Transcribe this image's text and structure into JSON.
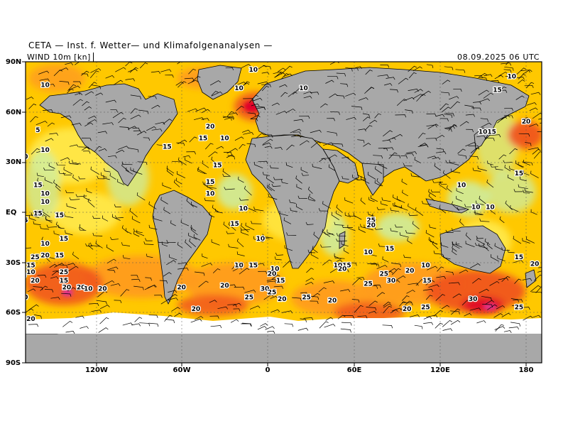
{
  "header": {
    "title": "CETA — Inst. f. Wetter— und Klimafolgenanalysen —"
  },
  "info": {
    "field": "WIND  10m  [kn]",
    "valid": "08.09.2025  06 UTC"
  },
  "axes": {
    "lat_labels": [
      "90N",
      "60N",
      "30N",
      "EQ",
      "30S",
      "60S",
      "90S"
    ],
    "lon_labels": [
      "120W",
      "60W",
      "0",
      "60E",
      "120E",
      "180"
    ]
  },
  "colors": {
    "ocean_base": "#ffc800",
    "yellow": "#ffee55",
    "light_green": "#c8f0b0",
    "orange": "#ff9a1e",
    "red_orange": "#f0501e",
    "red": "#e0002a",
    "magenta": "#e0358c",
    "land": "#a8a8a8",
    "ice": "#ffffff",
    "barb": "#000000"
  },
  "legend": {
    "speed_classes_kn": [
      "5",
      "10",
      "15",
      "20",
      "25",
      "30"
    ]
  },
  "wind_labels": [
    {
      "v": "10",
      "lon": -155,
      "lat": 75
    },
    {
      "v": "10",
      "lon": -10,
      "lat": 84
    },
    {
      "v": "10",
      "lon": 25,
      "lat": 73
    },
    {
      "v": "10",
      "lon": -20,
      "lat": 73
    },
    {
      "v": "10",
      "lon": 170,
      "lat": 80
    },
    {
      "v": "15",
      "lon": 160,
      "lat": 72
    },
    {
      "v": "20",
      "lon": -40,
      "lat": 50
    },
    {
      "v": "15",
      "lon": -45,
      "lat": 43
    },
    {
      "v": "10",
      "lon": -30,
      "lat": 43
    },
    {
      "v": "15",
      "lon": -70,
      "lat": 38
    },
    {
      "v": "10",
      "lon": -155,
      "lat": 36
    },
    {
      "v": "5",
      "lon": -160,
      "lat": 48
    },
    {
      "v": "10",
      "lon": -170,
      "lat": 32
    },
    {
      "v": "1015",
      "lon": 153,
      "lat": 47
    },
    {
      "v": "20",
      "lon": 180,
      "lat": 53
    },
    {
      "v": "15",
      "lon": -35,
      "lat": 27
    },
    {
      "v": "15",
      "lon": -40,
      "lat": 17
    },
    {
      "v": "10",
      "lon": -40,
      "lat": 10
    },
    {
      "v": "15",
      "lon": -160,
      "lat": 15
    },
    {
      "v": "10",
      "lon": -155,
      "lat": 10
    },
    {
      "v": "10",
      "lon": -155,
      "lat": 5
    },
    {
      "v": "15",
      "lon": -160,
      "lat": -2
    },
    {
      "v": "15",
      "lon": -145,
      "lat": -3
    },
    {
      "v": "15",
      "lon": -170,
      "lat": -6
    },
    {
      "v": "10",
      "lon": -17,
      "lat": 1
    },
    {
      "v": "15",
      "lon": -23,
      "lat": -8
    },
    {
      "v": "10",
      "lon": 135,
      "lat": 15
    },
    {
      "v": "10",
      "lon": 145,
      "lat": 2
    },
    {
      "v": "10",
      "lon": 155,
      "lat": 2
    },
    {
      "v": "15",
      "lon": 175,
      "lat": 22
    },
    {
      "v": "25",
      "lon": 72,
      "lat": -6
    },
    {
      "v": "20",
      "lon": 72,
      "lat": -9
    },
    {
      "v": "10",
      "lon": 70,
      "lat": -25
    },
    {
      "v": "15",
      "lon": 85,
      "lat": -23
    },
    {
      "v": "20",
      "lon": -175,
      "lat": -17
    },
    {
      "v": "10",
      "lon": -155,
      "lat": -20
    },
    {
      "v": "15",
      "lon": -142,
      "lat": -17
    },
    {
      "v": "15",
      "lon": -145,
      "lat": -27
    },
    {
      "v": "20",
      "lon": -155,
      "lat": -27
    },
    {
      "v": "25",
      "lon": -162,
      "lat": -28
    },
    {
      "v": "10",
      "lon": -5,
      "lat": -17
    },
    {
      "v": "10",
      "lon": 5,
      "lat": -35
    },
    {
      "v": "15",
      "lon": -10,
      "lat": -33
    },
    {
      "v": "10",
      "lon": -20,
      "lat": -33
    },
    {
      "v": "1015",
      "lon": 52,
      "lat": -33
    },
    {
      "v": "20",
      "lon": 52,
      "lat": -35
    },
    {
      "v": "25",
      "lon": 81,
      "lat": -38
    },
    {
      "v": "20",
      "lon": 99,
      "lat": -36
    },
    {
      "v": "10",
      "lon": 110,
      "lat": -33
    },
    {
      "v": "15",
      "lon": 175,
      "lat": -28
    },
    {
      "v": "20",
      "lon": 186,
      "lat": -32
    },
    {
      "v": "30",
      "lon": 86,
      "lat": -42
    },
    {
      "v": "20",
      "lon": 3,
      "lat": -38
    },
    {
      "v": "15",
      "lon": 9,
      "lat": -42
    },
    {
      "v": "15",
      "lon": 111,
      "lat": -42
    },
    {
      "v": "25",
      "lon": 70,
      "lat": -44
    },
    {
      "v": "20",
      "lon": -30,
      "lat": -45
    },
    {
      "v": "30",
      "lon": -2,
      "lat": -47
    },
    {
      "v": "25",
      "lon": 3,
      "lat": -49
    },
    {
      "v": "20",
      "lon": 10,
      "lat": -53
    },
    {
      "v": "25",
      "lon": 27,
      "lat": -52
    },
    {
      "v": "20",
      "lon": 45,
      "lat": -54
    },
    {
      "v": "25",
      "lon": -13,
      "lat": -52
    },
    {
      "v": "20",
      "lon": -50,
      "lat": -59
    },
    {
      "v": "25",
      "lon": -142,
      "lat": -37
    },
    {
      "v": "15",
      "lon": -142,
      "lat": -42
    },
    {
      "v": "20",
      "lon": -130,
      "lat": -46
    },
    {
      "v": "10",
      "lon": -125,
      "lat": -47
    },
    {
      "v": "20",
      "lon": -115,
      "lat": -47
    },
    {
      "v": "25",
      "lon": -171,
      "lat": -39
    },
    {
      "v": "10",
      "lon": -165,
      "lat": -37
    },
    {
      "v": "15",
      "lon": -165,
      "lat": -33
    },
    {
      "v": "20",
      "lon": -162,
      "lat": -42
    },
    {
      "v": "30",
      "lon": -170,
      "lat": -52
    },
    {
      "v": "20",
      "lon": -165,
      "lat": -65
    },
    {
      "v": "20",
      "lon": -60,
      "lat": -46
    },
    {
      "v": "20",
      "lon": -140,
      "lat": -46
    },
    {
      "v": "25",
      "lon": 110,
      "lat": -58
    },
    {
      "v": "20",
      "lon": 97,
      "lat": -59
    },
    {
      "v": "30",
      "lon": 143,
      "lat": -53
    },
    {
      "v": "25",
      "lon": 175,
      "lat": -58
    }
  ]
}
